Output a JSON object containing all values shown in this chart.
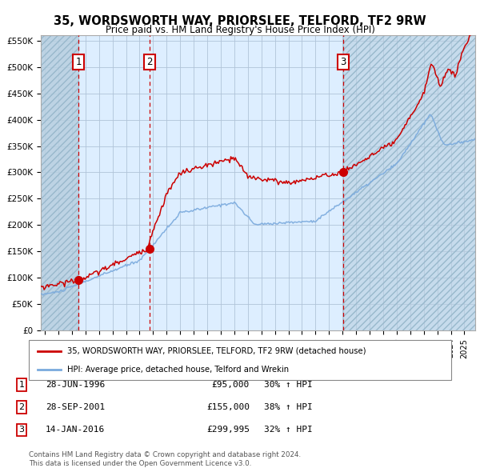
{
  "title": "35, WORDSWORTH WAY, PRIORSLEE, TELFORD, TF2 9RW",
  "subtitle": "Price paid vs. HM Land Registry's House Price Index (HPI)",
  "legend_label_red": "35, WORDSWORTH WAY, PRIORSLEE, TELFORD, TF2 9RW (detached house)",
  "legend_label_blue": "HPI: Average price, detached house, Telford and Wrekin",
  "footer1": "Contains HM Land Registry data © Crown copyright and database right 2024.",
  "footer2": "This data is licensed under the Open Government Licence v3.0.",
  "sale_points": [
    {
      "label": "1",
      "date_num": 1996.49,
      "price": 95000,
      "date_str": "28-JUN-1996",
      "pct": "30% ↑ HPI"
    },
    {
      "label": "2",
      "date_num": 2001.74,
      "price": 155000,
      "date_str": "28-SEP-2001",
      "pct": "38% ↑ HPI"
    },
    {
      "label": "3",
      "date_num": 2016.04,
      "price": 299995,
      "date_str": "14-JAN-2016",
      "pct": "32% ↑ HPI"
    }
  ],
  "red_color": "#cc0000",
  "blue_color": "#7aaadd",
  "dashed_color": "#cc0000",
  "bg_plot": "#ddeeff",
  "grid_color": "#b0c4d8",
  "ylim": [
    0,
    560000
  ],
  "xlim_start": 1993.7,
  "xlim_end": 2025.8
}
